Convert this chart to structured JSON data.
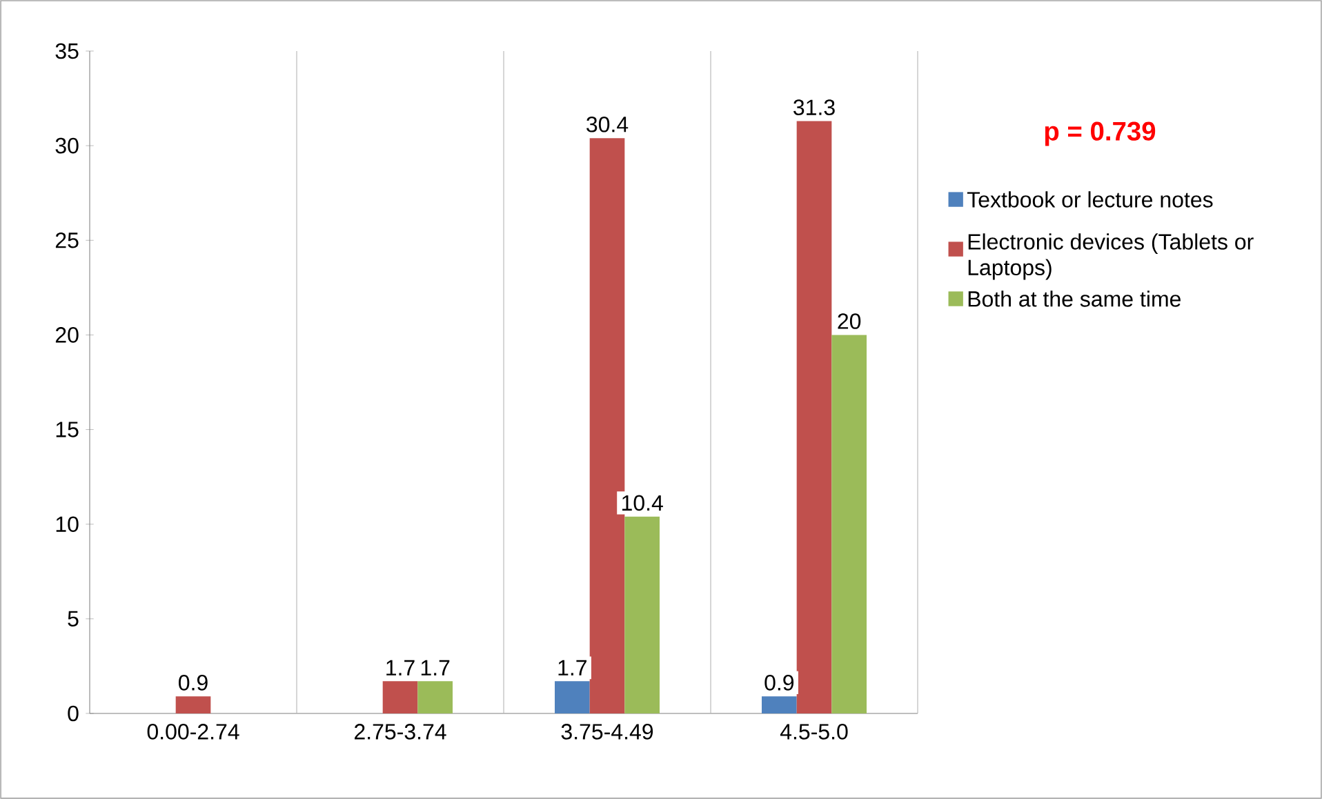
{
  "chart_data": {
    "type": "bar",
    "categories": [
      "0.00-2.74",
      "2.75-3.74",
      "3.75-4.49",
      "4.5-5.0"
    ],
    "series": [
      {
        "name": "Textbook or lecture notes",
        "color": "#4f81bd",
        "values": [
          0,
          0,
          1.7,
          0.9
        ],
        "value_labels": [
          null,
          null,
          "1.7",
          "0.9"
        ]
      },
      {
        "name": "Electronic devices (Tablets or Laptops)",
        "color": "#c0504d",
        "values": [
          0.9,
          1.7,
          30.4,
          31.3
        ],
        "value_labels": [
          "0.9",
          "1.7",
          "30.4",
          "31.3"
        ]
      },
      {
        "name": "Both at the same time",
        "color": "#9bbb59",
        "values": [
          0,
          1.7,
          10.4,
          20
        ],
        "value_labels": [
          null,
          "1.7",
          "10.4",
          "20"
        ]
      }
    ],
    "ylim": [
      0,
      35
    ],
    "yticks": [
      0,
      5,
      10,
      15,
      20,
      25,
      30,
      35
    ],
    "grid": "x",
    "legend": "right",
    "annotations": [
      "p = 0.739"
    ]
  }
}
